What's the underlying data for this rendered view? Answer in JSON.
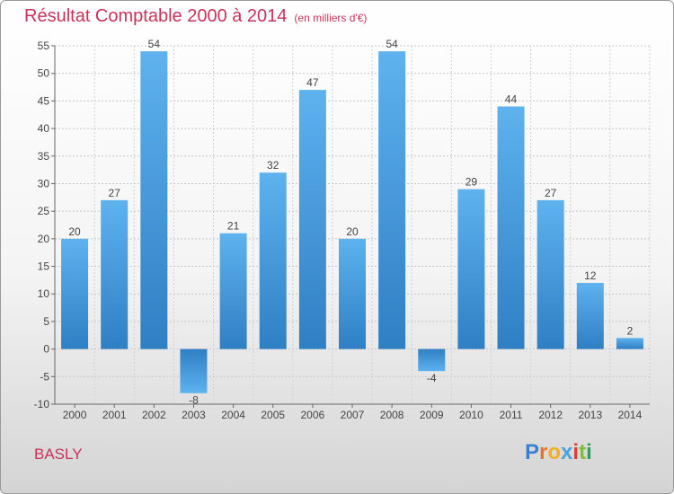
{
  "title": "Résultat Comptable 2000 à 2014",
  "subtitle": "(en milliers d'€)",
  "location": "BASLY",
  "brand": {
    "letters": [
      "P",
      "r",
      "o",
      "x",
      "i",
      "t",
      "i"
    ],
    "colors": [
      "#3b7fd1",
      "#e8742a",
      "#f2b11c",
      "#49a3d8",
      "#e03a3a",
      "#7cbf3a",
      "#2d9e5e"
    ]
  },
  "chart_data": {
    "type": "bar",
    "title": "Résultat Comptable 2000 à 2014",
    "ylabel": "",
    "xlabel": "",
    "categories": [
      "2000",
      "2001",
      "2002",
      "2003",
      "2004",
      "2005",
      "2006",
      "2007",
      "2008",
      "2009",
      "2010",
      "2011",
      "2012",
      "2013",
      "2014"
    ],
    "values": [
      20,
      27,
      54,
      -8,
      21,
      32,
      47,
      20,
      54,
      -4,
      29,
      44,
      27,
      12,
      2
    ],
    "ylim": [
      -10,
      55
    ],
    "yticks": [
      -10,
      -5,
      0,
      5,
      10,
      15,
      20,
      25,
      30,
      35,
      40,
      45,
      50,
      55
    ],
    "grid": true,
    "bar_color": "#4a9ee0"
  }
}
